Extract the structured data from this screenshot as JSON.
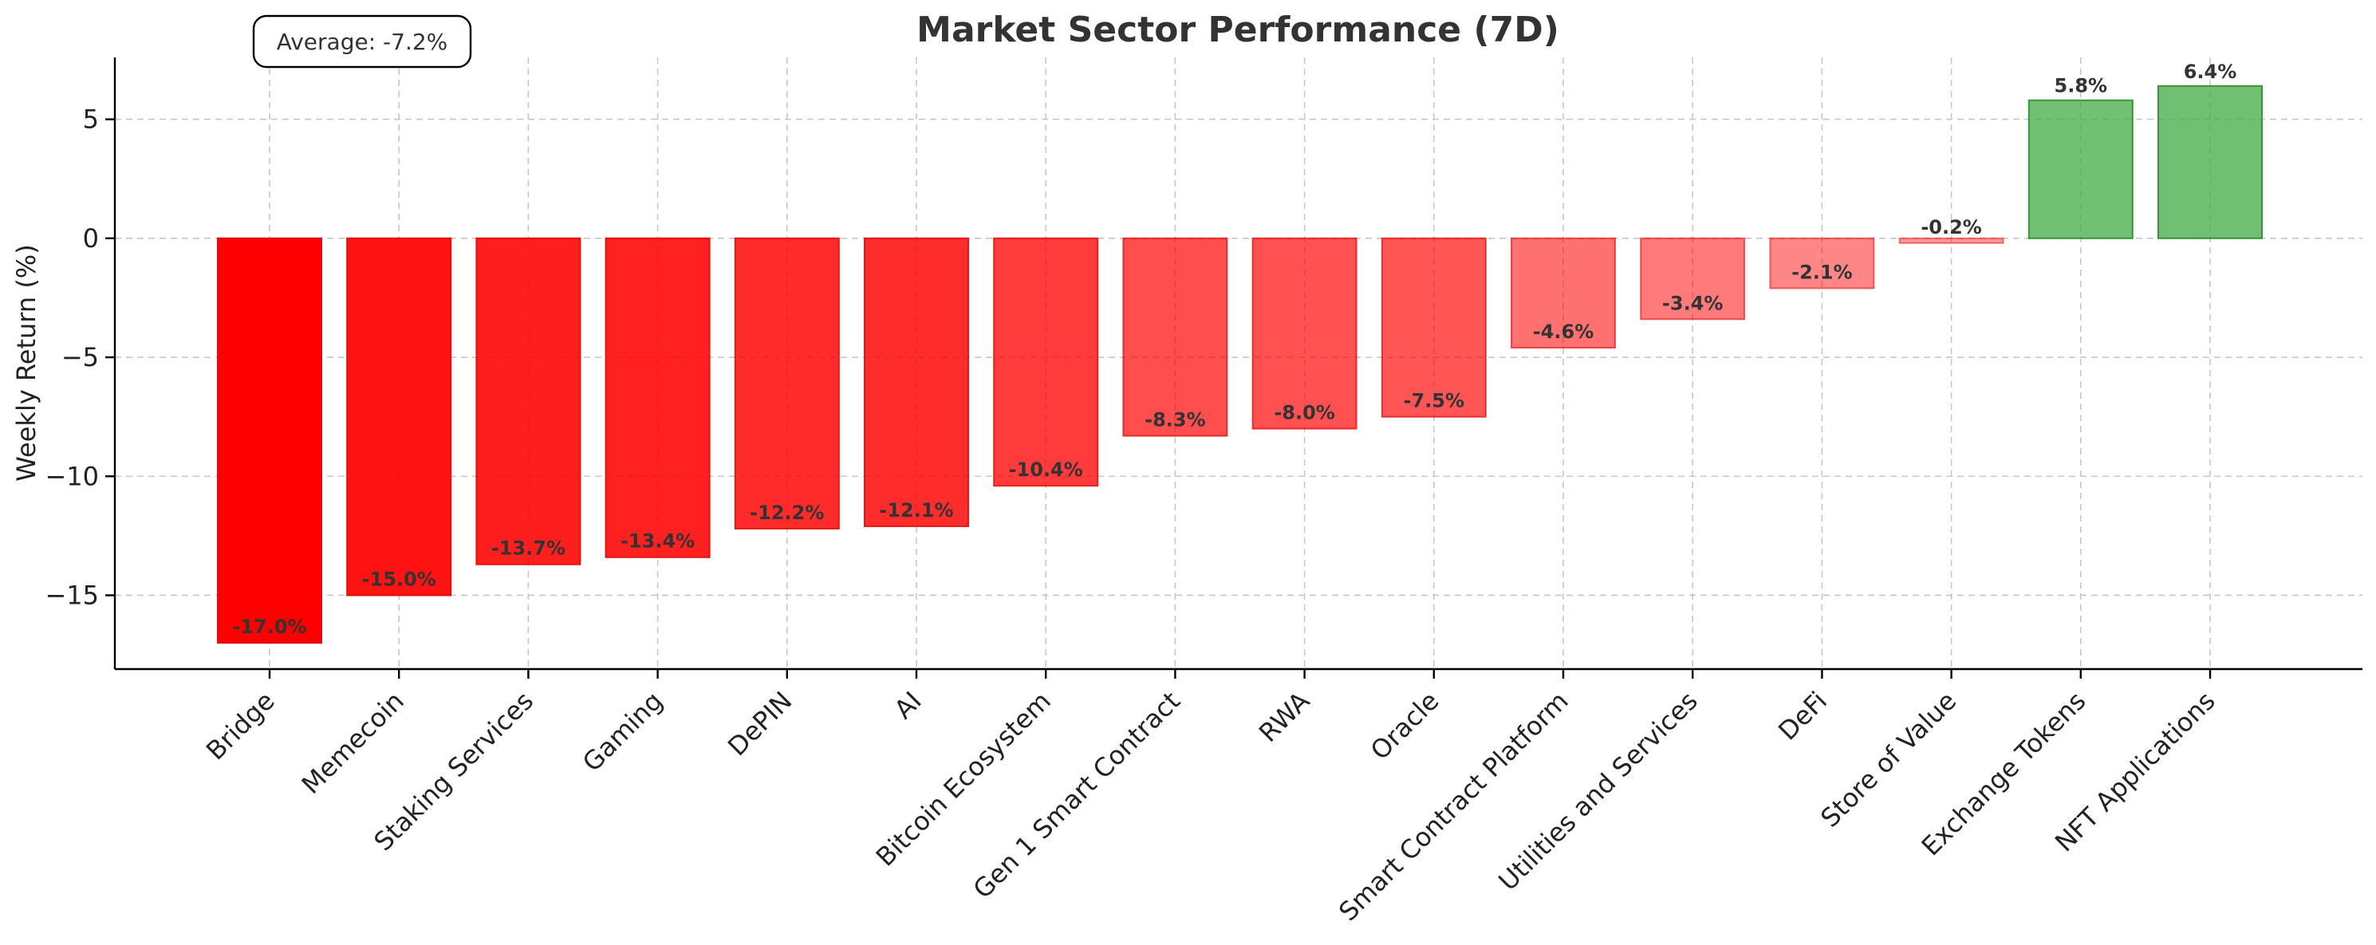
{
  "chart_data": {
    "type": "bar",
    "title": "Market Sector Performance (7D)",
    "xlabel": "",
    "ylabel": "Weekly Return (%)",
    "ylim": [
      -18.1,
      7.6
    ],
    "yticks": [
      5,
      0,
      -5,
      -10,
      -15
    ],
    "ytick_labels": [
      "5",
      "0",
      "−5",
      "−10",
      "−15"
    ],
    "grid": true,
    "annotation": "Average: -7.2%",
    "categories": [
      "Bridge",
      "Memecoin",
      "Staking Services",
      "Gaming",
      "DePIN",
      "AI",
      "Bitcoin Ecosystem",
      "Gen 1 Smart Contract",
      "RWA",
      "Oracle",
      "Smart Contract Platform",
      "Utilities and Services",
      "DeFi",
      "Store of Value",
      "Exchange Tokens",
      "NFT Applications"
    ],
    "values": [
      -17.0,
      -15.0,
      -13.7,
      -13.4,
      -12.2,
      -12.1,
      -10.4,
      -8.3,
      -8.0,
      -7.5,
      -4.6,
      -3.4,
      -2.1,
      -0.2,
      5.8,
      6.4
    ],
    "value_labels": [
      "-17.0%",
      "-15.0%",
      "-13.7%",
      "-13.4%",
      "-12.2%",
      "-12.1%",
      "-10.4%",
      "-8.3%",
      "-8.0%",
      "-7.5%",
      "-4.6%",
      "-3.4%",
      "-2.1%",
      "-0.2%",
      "5.8%",
      "6.4%"
    ],
    "colors": {
      "negative": "#ff0000",
      "positive": "#4caf50",
      "negative_edge": "#e01010",
      "positive_edge": "#2e8b2e"
    }
  }
}
